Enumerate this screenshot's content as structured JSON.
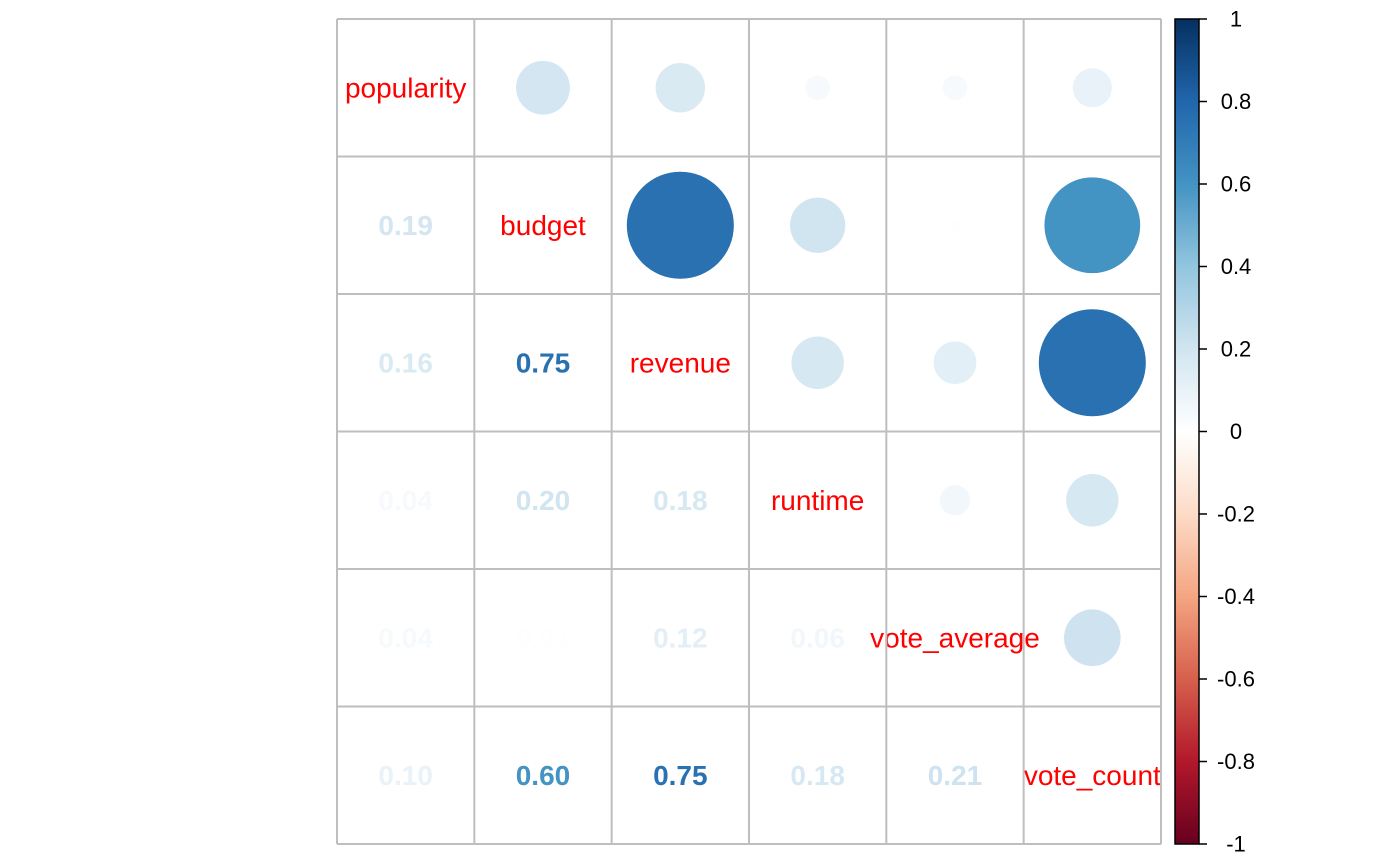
{
  "chart_data": {
    "type": "heatmap",
    "style": "mixed correlation plot: circles in upper triangle, numbers in lower triangle",
    "variables": [
      "popularity",
      "budget",
      "revenue",
      "runtime",
      "vote_average",
      "vote_count"
    ],
    "matrix": [
      [
        1.0,
        0.19,
        0.16,
        0.04,
        0.04,
        0.1
      ],
      [
        0.19,
        1.0,
        0.75,
        0.2,
        0.01,
        0.6
      ],
      [
        0.16,
        0.75,
        1.0,
        0.18,
        0.12,
        0.75
      ],
      [
        0.04,
        0.2,
        0.18,
        1.0,
        0.06,
        0.18
      ],
      [
        0.04,
        0.01,
        0.12,
        0.06,
        1.0,
        0.21
      ],
      [
        0.1,
        0.6,
        0.75,
        0.18,
        0.21,
        1.0
      ]
    ],
    "lower_labels": [
      {
        "row": 1,
        "col": 0,
        "text": "0.19"
      },
      {
        "row": 2,
        "col": 0,
        "text": "0.16"
      },
      {
        "row": 2,
        "col": 1,
        "text": "0.75"
      },
      {
        "row": 3,
        "col": 0,
        "text": "0.04"
      },
      {
        "row": 3,
        "col": 1,
        "text": "0.20"
      },
      {
        "row": 3,
        "col": 2,
        "text": "0.18"
      },
      {
        "row": 4,
        "col": 0,
        "text": "0.04"
      },
      {
        "row": 4,
        "col": 1,
        "text": "0.01"
      },
      {
        "row": 4,
        "col": 2,
        "text": "0.12"
      },
      {
        "row": 4,
        "col": 3,
        "text": "0.06"
      },
      {
        "row": 5,
        "col": 0,
        "text": "0.10"
      },
      {
        "row": 5,
        "col": 1,
        "text": "0.60"
      },
      {
        "row": 5,
        "col": 2,
        "text": "0.75"
      },
      {
        "row": 5,
        "col": 3,
        "text": "0.18"
      },
      {
        "row": 5,
        "col": 4,
        "text": "0.21"
      }
    ],
    "colorbar": {
      "range": [
        -1,
        1
      ],
      "ticks": [
        "1",
        "0.8",
        "0.6",
        "0.4",
        "0.2",
        "0",
        "-0.2",
        "-0.4",
        "-0.6",
        "-0.8",
        "-1"
      ],
      "tick_values": [
        1,
        0.8,
        0.6,
        0.4,
        0.2,
        0,
        -0.2,
        -0.4,
        -0.6,
        -0.8,
        -1
      ],
      "colors": [
        "#67001F",
        "#B2182B",
        "#D6604D",
        "#F4A582",
        "#FDDBC7",
        "#FFFFFF",
        "#D1E5F0",
        "#92C5DE",
        "#4393C3",
        "#2166AC",
        "#053061"
      ]
    },
    "diag_label_color": "#ff0000",
    "grid_color": "#bebebe",
    "grid": true,
    "legend_position": "right"
  }
}
